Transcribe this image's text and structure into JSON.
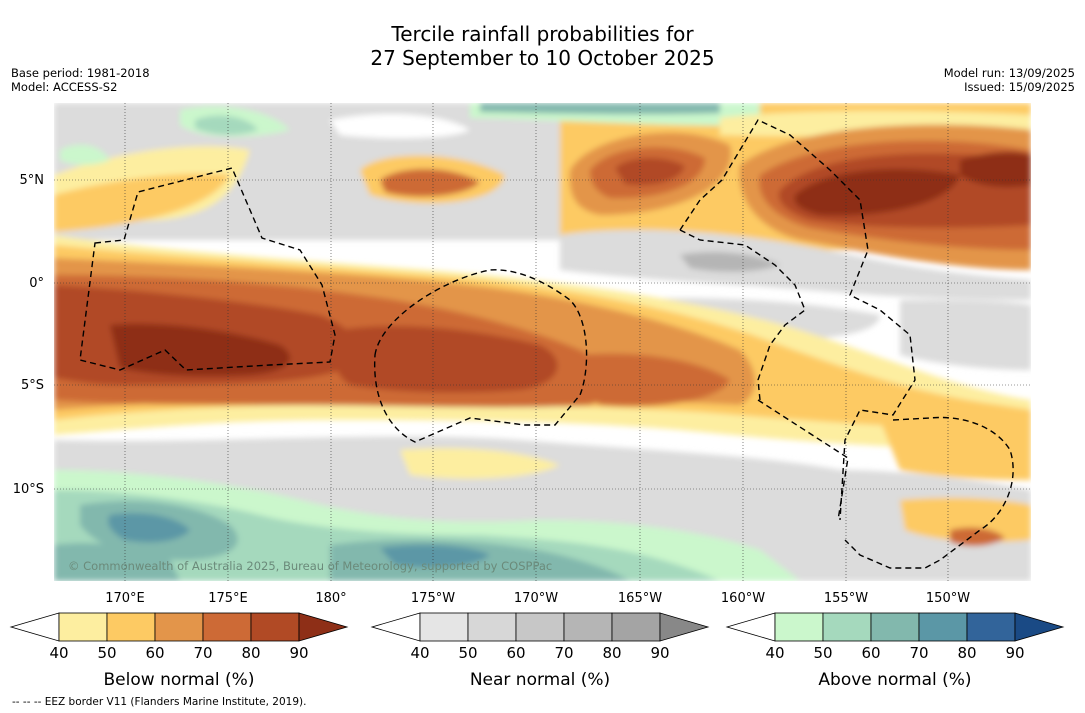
{
  "title": {
    "line1": "Tercile rainfall probabilities for",
    "line2": "27 September to 10 October 2025"
  },
  "meta": {
    "base_period": "Base period: 1981-2018",
    "model": "Model: ACCESS-S2",
    "model_run": "Model run: 13/09/2025",
    "issued": "Issued: 15/09/2025"
  },
  "map": {
    "lat_labels": [
      "5°N",
      "0°",
      "5°S",
      "10°S"
    ],
    "lon_labels": [
      "170°E",
      "175°E",
      "180°",
      "175°W",
      "170°W",
      "165°W",
      "160°W",
      "155°W",
      "150°W"
    ],
    "copyright": "© Commonwealth of Australia 2025, Bureau of Meteorology, supported by COSPPac",
    "extent": {
      "lon_min": 166.7,
      "lon_max": 213.9,
      "lat_max": 8.3,
      "lat_min": -14.3
    }
  },
  "legends": [
    {
      "title": "Below normal (%)",
      "ticks": [
        "40",
        "50",
        "60",
        "70",
        "80",
        "90"
      ],
      "colors": [
        "#fdeea0",
        "#fdca63",
        "#e3954a",
        "#cd6a36",
        "#b14a25",
        "#8e2f17"
      ]
    },
    {
      "title": "Near normal (%)",
      "ticks": [
        "40",
        "50",
        "60",
        "70",
        "80",
        "90"
      ],
      "colors": [
        "#e5e5e5",
        "#d7d7d7",
        "#c7c7c7",
        "#b5b5b5",
        "#a4a4a4",
        "#888888"
      ]
    },
    {
      "title": "Above normal (%)",
      "ticks": [
        "40",
        "50",
        "60",
        "70",
        "80",
        "90"
      ],
      "colors": [
        "#cbf7cc",
        "#a5d9bd",
        "#82b8ad",
        "#5b97a6",
        "#32649a",
        "#1a4a85"
      ]
    }
  ],
  "footer": "-- -- -- EEZ border V11 (Flanders Marine Institute, 2019)."
}
